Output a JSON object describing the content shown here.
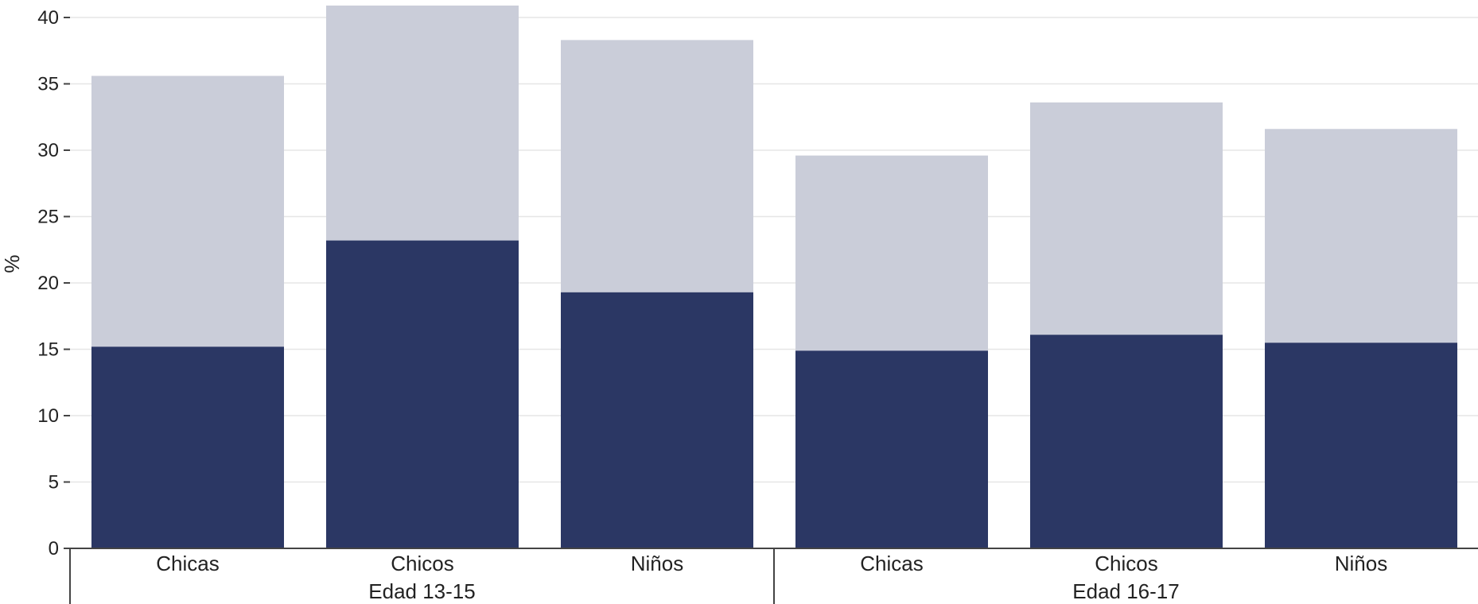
{
  "chart_data": {
    "type": "bar",
    "stacked": true,
    "ylabel": "%",
    "ylim": [
      0,
      40
    ],
    "yticks": [
      0,
      5,
      10,
      15,
      20,
      25,
      30,
      35,
      40
    ],
    "grid": true,
    "groups": [
      {
        "label": "Edad 13-15",
        "categories": [
          "Chicas",
          "Chicos",
          "Niños"
        ]
      },
      {
        "label": "Edad 16-17",
        "categories": [
          "Chicas",
          "Chicos",
          "Niños"
        ]
      }
    ],
    "series": [
      {
        "color": "#2b3764",
        "values": [
          15.2,
          23.2,
          19.3,
          14.9,
          16.1,
          15.5
        ]
      },
      {
        "color": "#cacdd9",
        "values": [
          20.4,
          17.7,
          19.0,
          14.7,
          17.5,
          16.1
        ]
      }
    ]
  }
}
